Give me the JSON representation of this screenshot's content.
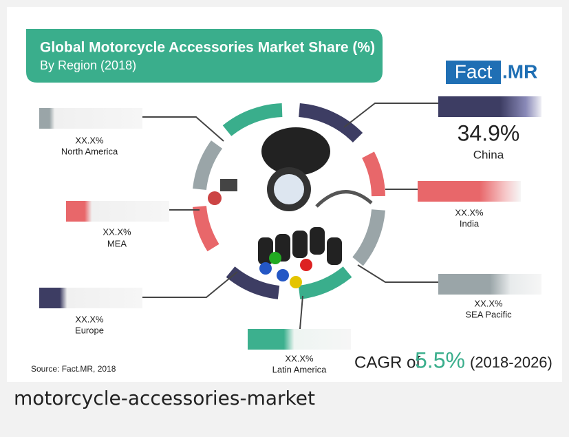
{
  "infographic": {
    "title": "Global Motorcycle Accessories Market Share (%)",
    "subtitle": "By Region (2018)",
    "logo": {
      "left": "Fact",
      "right": ".MR"
    },
    "regions": [
      {
        "name": "North America",
        "value": "XX.X%"
      },
      {
        "name": "China",
        "value": "34.9%"
      },
      {
        "name": "India",
        "value": "XX.X%"
      },
      {
        "name": "MEA",
        "value": "XX.X%"
      },
      {
        "name": "Europe",
        "value": "XX.X%"
      },
      {
        "name": "SEA Pacific",
        "value": "XX.X%"
      },
      {
        "name": "Latin America",
        "value": "XX.X%"
      }
    ],
    "cagr": {
      "prefix": "CAGR of",
      "value": "5.5%",
      "period": "(2018-2026)"
    },
    "source": "Source: Fact.MR, 2018"
  },
  "caption": "motorcycle-accessories-market"
}
